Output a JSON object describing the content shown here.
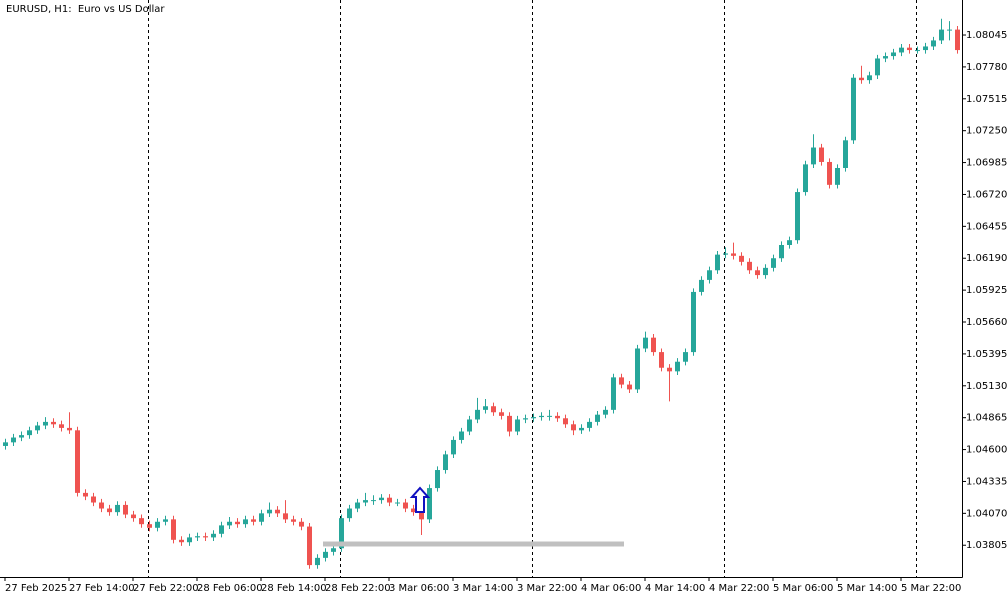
{
  "chart_data": {
    "type": "candlestick",
    "title": "EURUSD, H1:  Euro vs US Dollar",
    "categories": [
      "27 Feb 2025",
      null,
      null,
      null,
      null,
      null,
      null,
      null,
      "27 Feb 14:00",
      null,
      null,
      null,
      null,
      null,
      null,
      null,
      "27 Feb 22:00",
      null,
      null,
      null,
      null,
      null,
      null,
      null,
      "28 Feb 06:00",
      null,
      null,
      null,
      null,
      null,
      null,
      null,
      "28 Feb 14:00",
      null,
      null,
      null,
      null,
      null,
      null,
      null,
      "28 Feb 22:00",
      null,
      null,
      null,
      null,
      null,
      null,
      null,
      "3 Mar 06:00",
      null,
      null,
      null,
      null,
      null,
      null,
      null,
      "3 Mar 14:00",
      null,
      null,
      null,
      null,
      null,
      null,
      null,
      "3 Mar 22:00",
      null,
      null,
      null,
      null,
      null,
      null,
      null,
      "4 Mar 06:00",
      null,
      null,
      null,
      null,
      null,
      null,
      null,
      "4 Mar 14:00",
      null,
      null,
      null,
      null,
      null,
      null,
      null,
      "4 Mar 22:00",
      null,
      null,
      null,
      null,
      null,
      null,
      null,
      "5 Mar 06:00",
      null,
      null,
      null,
      null,
      null,
      null,
      null,
      "5 Mar 14:00",
      null,
      null,
      null,
      null,
      null,
      null,
      null,
      "5 Mar 22:00",
      null,
      null,
      null,
      null,
      null,
      null,
      null
    ],
    "ohlc": [
      [
        1.0463,
        1.0469,
        1.046,
        1.0466
      ],
      [
        1.0466,
        1.0473,
        1.0463,
        1.047
      ],
      [
        1.047,
        1.0475,
        1.0467,
        1.0472
      ],
      [
        1.0472,
        1.0479,
        1.0469,
        1.0476
      ],
      [
        1.0476,
        1.0483,
        1.0473,
        1.048
      ],
      [
        1.048,
        1.0487,
        1.0477,
        1.0483
      ],
      [
        1.0483,
        1.0486,
        1.0478,
        1.0481
      ],
      [
        1.0481,
        1.0484,
        1.0475,
        1.0478
      ],
      [
        1.0478,
        1.0491,
        1.0473,
        1.0476
      ],
      [
        1.0476,
        1.0479,
        1.0421,
        1.0424
      ],
      [
        1.0424,
        1.0427,
        1.0418,
        1.0421
      ],
      [
        1.0421,
        1.0424,
        1.0413,
        1.0416
      ],
      [
        1.0416,
        1.0419,
        1.0408,
        1.0411
      ],
      [
        1.0411,
        1.0414,
        1.0405,
        1.0408
      ],
      [
        1.0408,
        1.0417,
        1.0405,
        1.0414
      ],
      [
        1.0414,
        1.0417,
        1.0403,
        1.0406
      ],
      [
        1.0406,
        1.0409,
        1.04,
        1.0403
      ],
      [
        1.0403,
        1.0406,
        1.0395,
        1.0398
      ],
      [
        1.0398,
        1.0401,
        1.0392,
        1.0395
      ],
      [
        1.0395,
        1.0403,
        1.0392,
        1.04
      ],
      [
        1.04,
        1.0405,
        1.0397,
        1.0402
      ],
      [
        1.0402,
        1.0405,
        1.0382,
        1.0385
      ],
      [
        1.0385,
        1.0388,
        1.038,
        1.0383
      ],
      [
        1.0383,
        1.039,
        1.038,
        1.0387
      ],
      [
        1.0387,
        1.0391,
        1.0384,
        1.0388
      ],
      [
        1.0388,
        1.0391,
        1.0384,
        1.0387
      ],
      [
        1.0387,
        1.0393,
        1.0384,
        1.039
      ],
      [
        1.039,
        1.04,
        1.0387,
        1.0397
      ],
      [
        1.0397,
        1.0404,
        1.0394,
        1.04
      ],
      [
        1.04,
        1.0403,
        1.0395,
        1.0398
      ],
      [
        1.0398,
        1.0405,
        1.0395,
        1.0402
      ],
      [
        1.0402,
        1.0405,
        1.0397,
        1.04
      ],
      [
        1.04,
        1.041,
        1.0397,
        1.0407
      ],
      [
        1.0407,
        1.0416,
        1.0404,
        1.041
      ],
      [
        1.041,
        1.0413,
        1.0404,
        1.0407
      ],
      [
        1.0407,
        1.0418,
        1.0399,
        1.0402
      ],
      [
        1.0402,
        1.0405,
        1.0397,
        1.04
      ],
      [
        1.04,
        1.0403,
        1.0393,
        1.0396
      ],
      [
        1.0396,
        1.0399,
        1.0361,
        1.0364
      ],
      [
        1.0364,
        1.0373,
        1.0361,
        1.037
      ],
      [
        1.037,
        1.0378,
        1.0367,
        1.0375
      ],
      [
        1.0375,
        1.0381,
        1.0372,
        1.0378
      ],
      [
        1.0378,
        1.0406,
        1.0375,
        1.0403
      ],
      [
        1.0403,
        1.0414,
        1.04,
        1.0411
      ],
      [
        1.0411,
        1.0419,
        1.0408,
        1.0416
      ],
      [
        1.0416,
        1.0424,
        1.0413,
        1.0418
      ],
      [
        1.0418,
        1.0422,
        1.0414,
        1.0418
      ],
      [
        1.0418,
        1.0423,
        1.0415,
        1.042
      ],
      [
        1.042,
        1.0423,
        1.0413,
        1.0416
      ],
      [
        1.0416,
        1.0419,
        1.0413,
        1.0416
      ],
      [
        1.0416,
        1.0419,
        1.0408,
        1.0411
      ],
      [
        1.0411,
        1.0414,
        1.0405,
        1.0408
      ],
      [
        1.0408,
        1.0411,
        1.0389,
        1.0402
      ],
      [
        1.0402,
        1.0431,
        1.0399,
        1.0428
      ],
      [
        1.0428,
        1.0446,
        1.0425,
        1.0443
      ],
      [
        1.0443,
        1.0459,
        1.044,
        1.0456
      ],
      [
        1.0456,
        1.0471,
        1.0453,
        1.0468
      ],
      [
        1.0468,
        1.0478,
        1.0465,
        1.0475
      ],
      [
        1.0475,
        1.0488,
        1.0472,
        1.0485
      ],
      [
        1.0485,
        1.0503,
        1.0482,
        1.0493
      ],
      [
        1.0493,
        1.0502,
        1.049,
        1.0496
      ],
      [
        1.0496,
        1.0499,
        1.0488,
        1.0491
      ],
      [
        1.0491,
        1.0494,
        1.0485,
        1.0488
      ],
      [
        1.0488,
        1.0491,
        1.0471,
        1.0475
      ],
      [
        1.0475,
        1.0488,
        1.0472,
        1.0485
      ],
      [
        1.0485,
        1.0489,
        1.0482,
        1.0486
      ],
      [
        1.0486,
        1.049,
        1.0483,
        1.0487
      ],
      [
        1.0487,
        1.0491,
        1.0484,
        1.0488
      ],
      [
        1.0488,
        1.0493,
        1.0484,
        1.0488
      ],
      [
        1.0488,
        1.0491,
        1.0483,
        1.0486
      ],
      [
        1.0486,
        1.0489,
        1.0478,
        1.0481
      ],
      [
        1.0481,
        1.0484,
        1.0472,
        1.0476
      ],
      [
        1.0476,
        1.0481,
        1.0473,
        1.0478
      ],
      [
        1.0478,
        1.0486,
        1.0475,
        1.0483
      ],
      [
        1.0483,
        1.0492,
        1.048,
        1.0489
      ],
      [
        1.0489,
        1.0496,
        1.0486,
        1.0493
      ],
      [
        1.0493,
        1.0523,
        1.049,
        1.052
      ],
      [
        1.052,
        1.0523,
        1.0511,
        1.0514
      ],
      [
        1.0514,
        1.0517,
        1.0507,
        1.051
      ],
      [
        1.051,
        1.0547,
        1.0507,
        1.0544
      ],
      [
        1.0544,
        1.0558,
        1.0541,
        1.0553
      ],
      [
        1.0553,
        1.0556,
        1.0538,
        1.0541
      ],
      [
        1.0541,
        1.0544,
        1.0525,
        1.0528
      ],
      [
        1.0528,
        1.0531,
        1.05,
        1.0525
      ],
      [
        1.0525,
        1.0536,
        1.0522,
        1.0533
      ],
      [
        1.0533,
        1.0544,
        1.053,
        1.0541
      ],
      [
        1.0541,
        1.0594,
        1.0538,
        1.0591
      ],
      [
        1.0591,
        1.0604,
        1.0588,
        1.0601
      ],
      [
        1.0601,
        1.0612,
        1.0598,
        1.0609
      ],
      [
        1.0609,
        1.0625,
        1.0606,
        1.0622
      ],
      [
        1.0622,
        1.0628,
        1.0619,
        1.0623
      ],
      [
        1.0623,
        1.0632,
        1.0618,
        1.0621
      ],
      [
        1.0621,
        1.0624,
        1.0613,
        1.0616
      ],
      [
        1.0616,
        1.0619,
        1.0606,
        1.0609
      ],
      [
        1.0609,
        1.0612,
        1.0602,
        1.0605
      ],
      [
        1.0605,
        1.0614,
        1.0602,
        1.0611
      ],
      [
        1.0611,
        1.0622,
        1.0608,
        1.0619
      ],
      [
        1.0619,
        1.0633,
        1.0616,
        1.063
      ],
      [
        1.063,
        1.0637,
        1.0627,
        1.0634
      ],
      [
        1.0634,
        1.0677,
        1.0631,
        1.0674
      ],
      [
        1.0674,
        1.07,
        1.0671,
        1.0697
      ],
      [
        1.0697,
        1.0722,
        1.0694,
        1.0711
      ],
      [
        1.0711,
        1.0714,
        1.0696,
        1.0699
      ],
      [
        1.0699,
        1.0702,
        1.0677,
        1.068
      ],
      [
        1.068,
        1.0697,
        1.0677,
        1.0694
      ],
      [
        1.0694,
        1.072,
        1.0691,
        1.0717
      ],
      [
        1.0717,
        1.0772,
        1.0714,
        1.0769
      ],
      [
        1.0769,
        1.0779,
        1.0764,
        1.0767
      ],
      [
        1.0767,
        1.0774,
        1.0764,
        1.0771
      ],
      [
        1.0771,
        1.0788,
        1.0768,
        1.0785
      ],
      [
        1.0785,
        1.079,
        1.0782,
        1.0787
      ],
      [
        1.0787,
        1.0793,
        1.0784,
        1.079
      ],
      [
        1.079,
        1.0797,
        1.0787,
        1.0794
      ],
      [
        1.0794,
        1.0797,
        1.0789,
        1.0792
      ],
      [
        1.0792,
        1.0795,
        1.0789,
        1.0792
      ],
      [
        1.0792,
        1.0798,
        1.0789,
        1.0795
      ],
      [
        1.0795,
        1.0803,
        1.0792,
        1.08
      ],
      [
        1.08,
        1.0818,
        1.0797,
        1.0809
      ],
      [
        1.0809,
        1.0816,
        1.08,
        1.0809
      ],
      [
        1.0809,
        1.0812,
        1.0789,
        1.0792
      ]
    ],
    "up_color": "#26a69a",
    "down_color": "#ef5350",
    "period_separators": [
      18,
      42,
      66,
      90,
      114
    ],
    "ylim": [
      1.03541,
      1.08336
    ],
    "yticks": [
      1.08045,
      {
        "value": 1.0778,
        "label": "1.07780"
      },
      1.07515,
      {
        "value": 1.0725,
        "label": "1.07250"
      },
      1.06985,
      {
        "value": 1.0672,
        "label": "1.06720"
      },
      1.06455,
      {
        "value": 1.0619,
        "label": "1.06190"
      },
      1.05925,
      {
        "value": 1.0566,
        "label": "1.05660"
      },
      1.05395,
      {
        "value": 1.0513,
        "label": "1.05130"
      },
      1.04865,
      {
        "value": 1.046,
        "label": "1.04600"
      },
      1.04335,
      {
        "value": 1.0407,
        "label": "1.04070"
      },
      1.03805
    ]
  }
}
